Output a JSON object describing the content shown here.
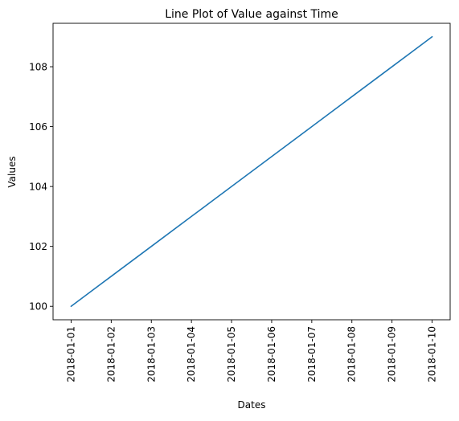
{
  "chart_data": {
    "type": "line",
    "title": "Line Plot of Value against Time",
    "xlabel": "Dates",
    "ylabel": "Values",
    "x": [
      "2018-01-01",
      "2018-01-02",
      "2018-01-03",
      "2018-01-04",
      "2018-01-05",
      "2018-01-06",
      "2018-01-07",
      "2018-01-08",
      "2018-01-09",
      "2018-01-10"
    ],
    "series": [
      {
        "values": [
          100,
          101,
          102,
          103,
          104,
          105,
          106,
          107,
          108,
          109
        ],
        "color": "#1f77b4"
      }
    ],
    "yticks": [
      "100",
      "102",
      "104",
      "106",
      "108"
    ],
    "ylim": [
      99.55,
      109.45
    ],
    "grid": false,
    "legend": "none"
  }
}
